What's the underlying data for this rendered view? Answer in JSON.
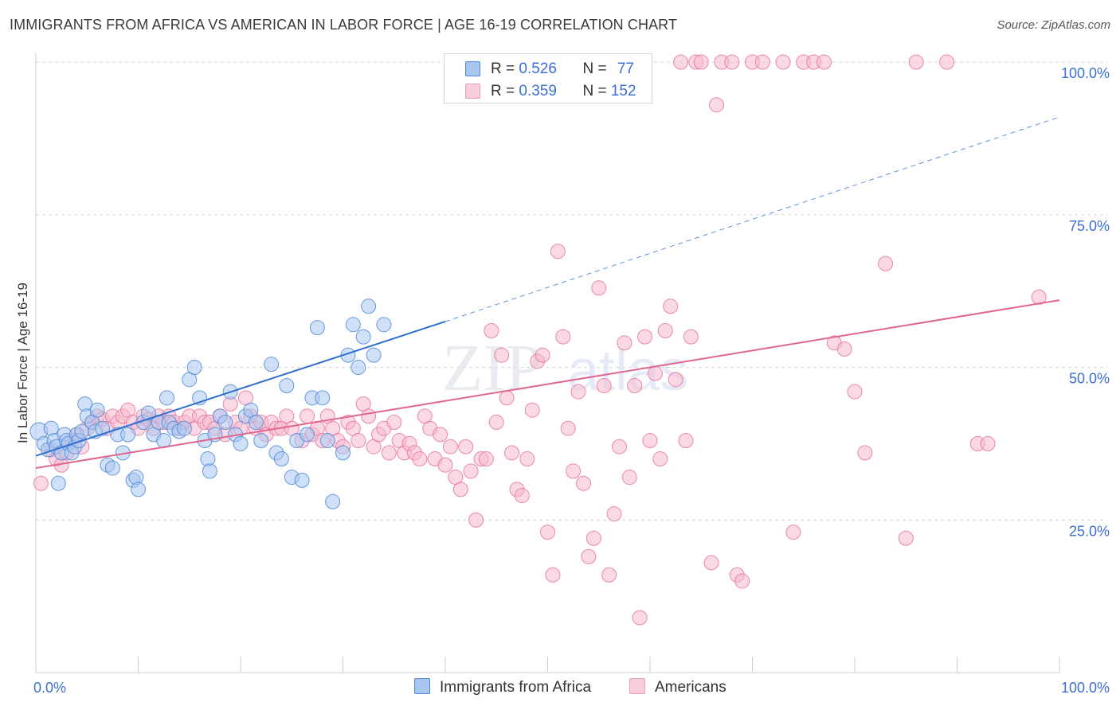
{
  "title": "IMMIGRANTS FROM AFRICA VS AMERICAN IN LABOR FORCE | AGE 16-19 CORRELATION CHART",
  "source": "Source: ZipAtlas.com",
  "watermark": "ZIPatlas",
  "colors": {
    "blue": "#4f88d8",
    "blue_fill": "#a9c6ee",
    "pink": "#e8739d",
    "pink_fill": "#f5b9cd",
    "axis_label": "#3c6fd1",
    "grid": "#d7d7d7"
  },
  "legend_top": [
    {
      "r_label": "R = ",
      "r_value": "0.526",
      "n_label": "N = ",
      "n_value": "77"
    },
    {
      "r_label": "R = ",
      "r_value": "0.359",
      "n_label": "N = ",
      "n_value": "152"
    }
  ],
  "chart_data": {
    "type": "scatter",
    "title": "IMMIGRANTS FROM AFRICA VS AMERICAN IN LABOR FORCE | AGE 16-19 CORRELATION CHART",
    "xlabel": "",
    "ylabel": "In Labor Force | Age 16-19",
    "xlim": [
      0,
      100
    ],
    "ylim": [
      0,
      102
    ],
    "x_tick_labels": [
      "0.0%",
      "100.0%"
    ],
    "y_ticks": [
      25,
      50,
      75,
      100
    ],
    "y_tick_labels": [
      "25.0%",
      "50.0%",
      "75.0%",
      "100.0%"
    ],
    "grid": true,
    "legend_position": "top-center",
    "series": [
      {
        "name": "Immigrants from Africa",
        "color": "#4f88d8",
        "trend": {
          "x0": 0,
          "y0": 35.5,
          "x1": 40,
          "y1": 57.5,
          "dashed_to_x": 100,
          "dashed_to_y": 91
        },
        "points": [
          [
            0.3,
            39.5
          ],
          [
            0.8,
            37.5
          ],
          [
            1.2,
            36.5
          ],
          [
            1.5,
            40
          ],
          [
            1.8,
            38
          ],
          [
            2,
            37
          ],
          [
            2.2,
            31
          ],
          [
            2.5,
            36
          ],
          [
            2.8,
            39
          ],
          [
            3,
            38
          ],
          [
            3.2,
            37.5
          ],
          [
            3.5,
            36
          ],
          [
            3.8,
            37
          ],
          [
            4,
            39
          ],
          [
            4.2,
            38
          ],
          [
            4.5,
            39.5
          ],
          [
            4.8,
            44
          ],
          [
            5,
            42
          ],
          [
            5.5,
            41
          ],
          [
            5.8,
            39.5
          ],
          [
            6,
            43
          ],
          [
            6.5,
            40
          ],
          [
            7,
            34
          ],
          [
            7.5,
            33.5
          ],
          [
            8,
            39
          ],
          [
            8.5,
            36
          ],
          [
            9,
            39
          ],
          [
            9.5,
            31.5
          ],
          [
            9.8,
            32
          ],
          [
            10,
            30
          ],
          [
            10.5,
            41
          ],
          [
            11,
            42.5
          ],
          [
            11.5,
            39
          ],
          [
            12,
            41
          ],
          [
            12.5,
            38
          ],
          [
            12.8,
            45
          ],
          [
            13,
            41
          ],
          [
            13.5,
            40
          ],
          [
            14,
            39.5
          ],
          [
            14.5,
            40
          ],
          [
            15,
            48
          ],
          [
            15.5,
            50
          ],
          [
            16,
            45
          ],
          [
            16.5,
            38
          ],
          [
            16.8,
            35
          ],
          [
            17,
            33
          ],
          [
            17.5,
            39
          ],
          [
            18,
            42
          ],
          [
            18.5,
            41
          ],
          [
            19,
            46
          ],
          [
            19.5,
            39
          ],
          [
            20,
            37.5
          ],
          [
            20.5,
            42
          ],
          [
            21,
            43
          ],
          [
            21.5,
            41
          ],
          [
            22,
            38
          ],
          [
            23,
            50.5
          ],
          [
            23.5,
            36
          ],
          [
            24,
            35
          ],
          [
            24.5,
            47
          ],
          [
            25,
            32
          ],
          [
            25.5,
            38
          ],
          [
            26,
            31.5
          ],
          [
            26.5,
            39
          ],
          [
            27,
            45
          ],
          [
            27.5,
            56.5
          ],
          [
            28,
            45
          ],
          [
            28.5,
            38
          ],
          [
            29,
            28
          ],
          [
            30,
            36
          ],
          [
            30.5,
            52
          ],
          [
            31,
            57
          ],
          [
            31.5,
            50
          ],
          [
            32,
            55
          ],
          [
            32.5,
            60
          ],
          [
            33,
            52
          ],
          [
            34,
            57
          ]
        ]
      },
      {
        "name": "Americans",
        "color": "#e8739d",
        "trend": {
          "x0": 0,
          "y0": 33.5,
          "x1": 100,
          "y1": 61
        },
        "points": [
          [
            0.5,
            31
          ],
          [
            1.5,
            36.5
          ],
          [
            2,
            35
          ],
          [
            2.5,
            34
          ],
          [
            3,
            36
          ],
          [
            3.5,
            38
          ],
          [
            4,
            39
          ],
          [
            4.5,
            37
          ],
          [
            5,
            40
          ],
          [
            5.5,
            41
          ],
          [
            6,
            42
          ],
          [
            6.5,
            41.5
          ],
          [
            7,
            40
          ],
          [
            7.5,
            42
          ],
          [
            8,
            41
          ],
          [
            8.5,
            42
          ],
          [
            9,
            43
          ],
          [
            9.5,
            41
          ],
          [
            10,
            40
          ],
          [
            10.5,
            42
          ],
          [
            11,
            41.5
          ],
          [
            11.5,
            40
          ],
          [
            12,
            42
          ],
          [
            12.5,
            41
          ],
          [
            13,
            42
          ],
          [
            13.5,
            41
          ],
          [
            14,
            40
          ],
          [
            14.5,
            41
          ],
          [
            15,
            42
          ],
          [
            15.5,
            40
          ],
          [
            16,
            42
          ],
          [
            16.5,
            41
          ],
          [
            17,
            41
          ],
          [
            17.5,
            40
          ],
          [
            18,
            42
          ],
          [
            18.5,
            39
          ],
          [
            19,
            44
          ],
          [
            19.5,
            41
          ],
          [
            20,
            40
          ],
          [
            20.5,
            45
          ],
          [
            21,
            42
          ],
          [
            21.5,
            40
          ],
          [
            22,
            41
          ],
          [
            22.5,
            39
          ],
          [
            23,
            41
          ],
          [
            23.5,
            40
          ],
          [
            24,
            40
          ],
          [
            24.5,
            42
          ],
          [
            25,
            40
          ],
          [
            26,
            38
          ],
          [
            26.5,
            42
          ],
          [
            27,
            39
          ],
          [
            27.5,
            40
          ],
          [
            28,
            38
          ],
          [
            28.5,
            42
          ],
          [
            29,
            40
          ],
          [
            29.5,
            38
          ],
          [
            30,
            37
          ],
          [
            30.5,
            41
          ],
          [
            31,
            40
          ],
          [
            31.5,
            38
          ],
          [
            32,
            44
          ],
          [
            32.5,
            42
          ],
          [
            33,
            37
          ],
          [
            33.5,
            39
          ],
          [
            34,
            40
          ],
          [
            34.5,
            36
          ],
          [
            35,
            41
          ],
          [
            35.5,
            38
          ],
          [
            36,
            36
          ],
          [
            36.5,
            37.5
          ],
          [
            37,
            36
          ],
          [
            37.5,
            35
          ],
          [
            38,
            42
          ],
          [
            38.5,
            40
          ],
          [
            39,
            35
          ],
          [
            39.5,
            39
          ],
          [
            40,
            34
          ],
          [
            40.5,
            37
          ],
          [
            41,
            32
          ],
          [
            41.5,
            30
          ],
          [
            42,
            37
          ],
          [
            42.5,
            33
          ],
          [
            43,
            25
          ],
          [
            43.5,
            35
          ],
          [
            44,
            35
          ],
          [
            44.5,
            56
          ],
          [
            45,
            41
          ],
          [
            45.5,
            52
          ],
          [
            46,
            45
          ],
          [
            46.5,
            36
          ],
          [
            47,
            30
          ],
          [
            47.5,
            29
          ],
          [
            48,
            35
          ],
          [
            48.5,
            43
          ],
          [
            49,
            51
          ],
          [
            49.5,
            52
          ],
          [
            50,
            23
          ],
          [
            50.5,
            16
          ],
          [
            51,
            69
          ],
          [
            51.5,
            55
          ],
          [
            52,
            40
          ],
          [
            52.5,
            33
          ],
          [
            53,
            46
          ],
          [
            53.5,
            31
          ],
          [
            54,
            19
          ],
          [
            54.5,
            22
          ],
          [
            55,
            63
          ],
          [
            55.5,
            47
          ],
          [
            56,
            16
          ],
          [
            56.5,
            26
          ],
          [
            57,
            37
          ],
          [
            57.5,
            54
          ],
          [
            58,
            32
          ],
          [
            58.5,
            47
          ],
          [
            59,
            9
          ],
          [
            59.5,
            55
          ],
          [
            60,
            38
          ],
          [
            60.5,
            49
          ],
          [
            61,
            35
          ],
          [
            61.5,
            56
          ],
          [
            62,
            60
          ],
          [
            62.5,
            48
          ],
          [
            63,
            100
          ],
          [
            63.5,
            38
          ],
          [
            64,
            55
          ],
          [
            64.5,
            100
          ],
          [
            65,
            100
          ],
          [
            66,
            18
          ],
          [
            66.5,
            93
          ],
          [
            67,
            100
          ],
          [
            68,
            100
          ],
          [
            68.5,
            16
          ],
          [
            69,
            15
          ],
          [
            70,
            100
          ],
          [
            71,
            100
          ],
          [
            73,
            100
          ],
          [
            74,
            23
          ],
          [
            75,
            100
          ],
          [
            76,
            100
          ],
          [
            77,
            100
          ],
          [
            78,
            54
          ],
          [
            79,
            53
          ],
          [
            80,
            46
          ],
          [
            81,
            36
          ],
          [
            83,
            67
          ],
          [
            85,
            22
          ],
          [
            86,
            100
          ],
          [
            89,
            100
          ],
          [
            92,
            37.5
          ],
          [
            93,
            37.5
          ],
          [
            98,
            61.5
          ]
        ]
      }
    ]
  },
  "bottom_legend": [
    {
      "label": "Immigrants from Africa"
    },
    {
      "label": "Americans"
    }
  ]
}
